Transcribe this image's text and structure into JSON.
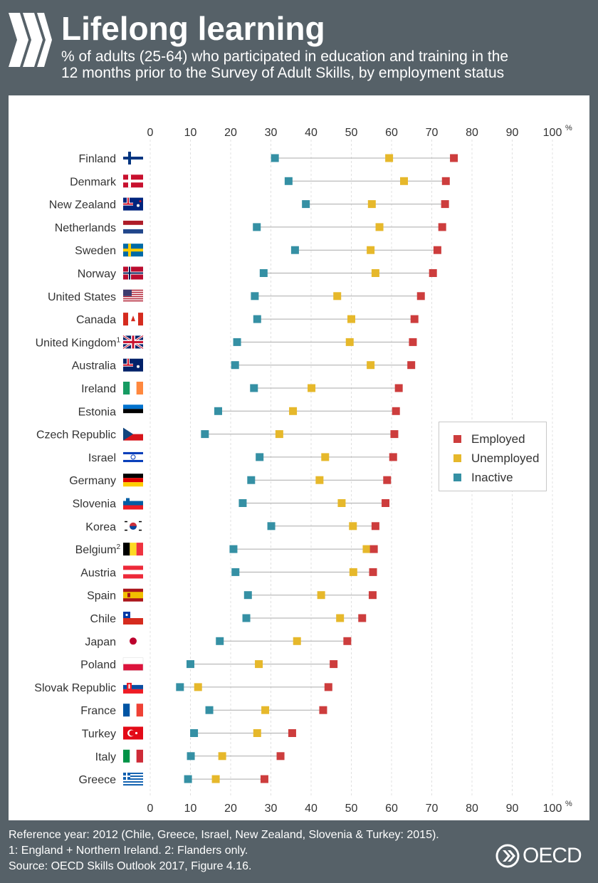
{
  "header": {
    "title": "Lifelong learning",
    "subtitle_line1": "% of adults (25-64) who participated in education and training in the",
    "subtitle_line2": "12 months prior to the Survey of Adult Skills, by employment status"
  },
  "footer": {
    "note1": "Reference year: 2012 (Chile, Greece, Israel, New Zealand, Slovenia & Turkey: 2015).",
    "note2": "1: England + Northern Ireland. 2: Flanders only.",
    "source": "Source: OECD Skills Outlook 2017, Figure 4.16.",
    "logo_text": "OECD"
  },
  "chart_data": {
    "type": "scatter",
    "title": "Lifelong learning",
    "subtitle": "% of adults (25-64) who participated in education and training in the 12 months prior to the Survey of Adult Skills, by employment status",
    "x_unit": "%",
    "xlim": [
      0,
      100
    ],
    "x_ticks": [
      0,
      10,
      20,
      30,
      40,
      50,
      60,
      70,
      80,
      90,
      100
    ],
    "grid": true,
    "legend_position": "right",
    "categories": [
      "Finland",
      "Denmark",
      "New Zealand",
      "Netherlands",
      "Sweden",
      "Norway",
      "United States",
      "Canada",
      "United Kingdom¹",
      "Australia",
      "Ireland",
      "Estonia",
      "Czech Republic",
      "Israel",
      "Germany",
      "Slovenia",
      "Korea",
      "Belgium²",
      "Austria",
      "Spain",
      "Chile",
      "Japan",
      "Poland",
      "Slovak Republic",
      "France",
      "Turkey",
      "Italy",
      "Greece"
    ],
    "series": [
      {
        "name": "Employed",
        "color": "#cd3d3d",
        "values": [
          75.5,
          73.5,
          73.3,
          72.6,
          71.4,
          70.3,
          67.3,
          65.7,
          65.3,
          64.9,
          61.8,
          61.1,
          60.7,
          60.4,
          58.9,
          58.5,
          56.0,
          55.6,
          55.4,
          55.3,
          52.7,
          49.0,
          45.6,
          44.3,
          43.0,
          35.3,
          32.4,
          28.4
        ]
      },
      {
        "name": "Unemployed",
        "color": "#e6b82b",
        "values": [
          59.4,
          63.1,
          55.1,
          57.0,
          54.8,
          56.0,
          46.5,
          50.0,
          49.6,
          54.8,
          40.1,
          35.5,
          32.1,
          43.5,
          42.1,
          47.6,
          50.4,
          53.8,
          50.5,
          42.5,
          47.2,
          36.5,
          27.0,
          11.9,
          28.6,
          26.6,
          17.9,
          16.3
        ]
      },
      {
        "name": "Inactive",
        "color": "#3590a4",
        "values": [
          31.0,
          34.4,
          38.7,
          26.5,
          36.0,
          28.2,
          26.0,
          26.6,
          21.6,
          21.1,
          25.8,
          16.9,
          13.6,
          27.2,
          25.1,
          23.0,
          30.1,
          20.7,
          21.2,
          24.3,
          23.9,
          17.3,
          10.0,
          7.4,
          14.7,
          10.9,
          10.1,
          9.4
        ]
      }
    ]
  }
}
